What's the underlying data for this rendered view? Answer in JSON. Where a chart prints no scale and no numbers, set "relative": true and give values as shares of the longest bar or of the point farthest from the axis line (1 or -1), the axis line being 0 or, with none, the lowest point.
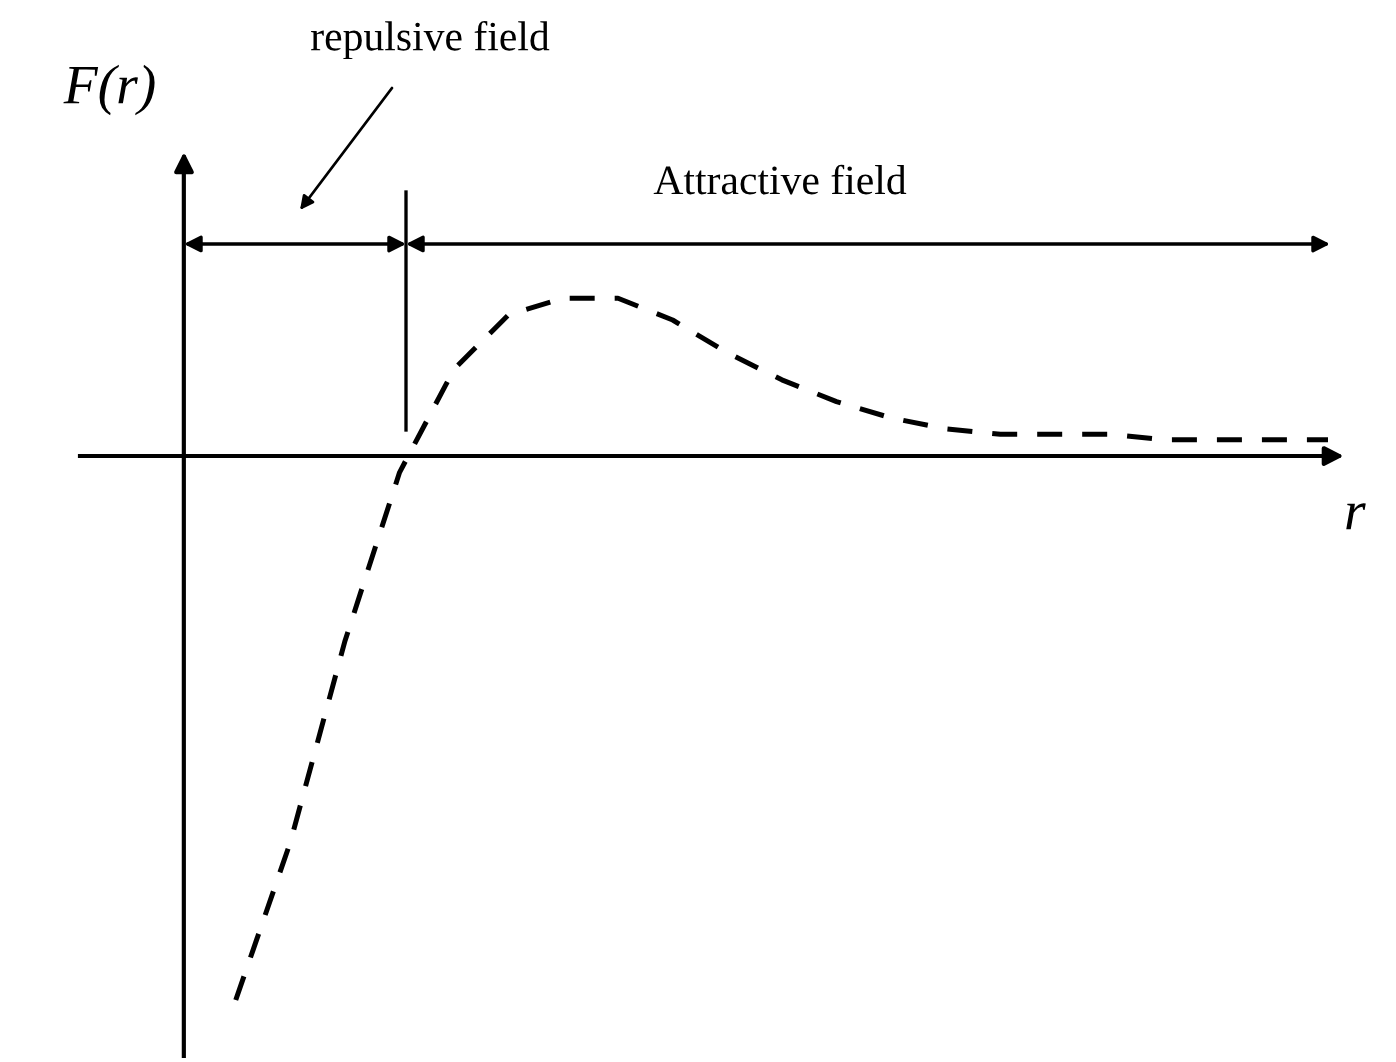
{
  "chart_data": {
    "type": "line",
    "relative": true,
    "ylabel": "F(r)",
    "xlabel": "r",
    "categories": [
      null,
      null,
      null,
      null,
      null,
      null,
      null,
      null,
      null,
      null,
      null,
      null,
      null,
      null,
      null,
      null,
      null,
      null,
      null,
      null,
      null
    ],
    "series": [
      {
        "color": "#000000",
        "values": [
          -1.0,
          -0.71,
          -0.34,
          -0.03,
          0.16,
          0.26,
          0.29,
          0.29,
          0.25,
          0.19,
          0.14,
          0.1,
          0.07,
          0.05,
          0.04,
          0.04,
          0.04,
          0.03,
          0.03,
          0.03,
          0.03
        ]
      }
    ],
    "annotations": [
      "repulsive field",
      "Attractive field"
    ],
    "line_style": "dashed",
    "marker": "none",
    "grid": false,
    "legend": false
  }
}
